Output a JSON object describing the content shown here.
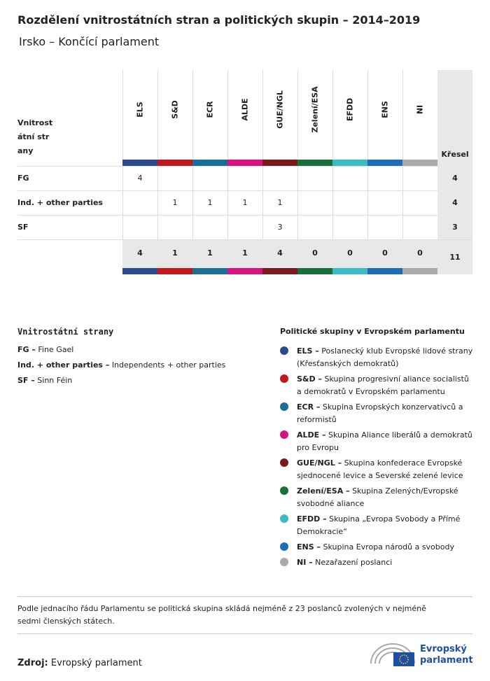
{
  "title": "Rozdělení vnitrostátních stran a politických skupin – 2014–2019",
  "subtitle": "Irsko – Končící parlament",
  "table": {
    "row_header": "Vnitrostátní strany",
    "total_header": "Křesel",
    "columns": [
      {
        "name": "ELS",
        "color": "#2b4a8b"
      },
      {
        "name": "S&D",
        "color": "#c0191d"
      },
      {
        "name": "ECR",
        "color": "#1b6f96"
      },
      {
        "name": "ALDE",
        "color": "#d6137f"
      },
      {
        "name": "GUE/NGL",
        "color": "#7b1a1a"
      },
      {
        "name": "Zelení/ESA",
        "color": "#1a6e38"
      },
      {
        "name": "EFDD",
        "color": "#3bbcc2"
      },
      {
        "name": "ENS",
        "color": "#1f6db5"
      },
      {
        "name": "NI",
        "color": "#aaaaaa"
      }
    ],
    "rows": [
      {
        "party": "FG",
        "values": [
          4,
          null,
          null,
          null,
          null,
          null,
          null,
          null,
          null
        ],
        "total": 4
      },
      {
        "party": "Ind. + other parties",
        "values": [
          null,
          1,
          1,
          1,
          1,
          null,
          null,
          null,
          null
        ],
        "total": 4
      },
      {
        "party": "SF",
        "values": [
          null,
          null,
          null,
          null,
          3,
          null,
          null,
          null,
          null
        ],
        "total": 3
      }
    ],
    "totals": [
      4,
      1,
      1,
      1,
      4,
      0,
      0,
      0,
      0
    ],
    "grand_total": 11
  },
  "national_legend": {
    "title": "Vnitrostátní strany",
    "items": [
      {
        "abbr": "FG –",
        "name": "Fine Gael"
      },
      {
        "abbr": "Ind. + other parties –",
        "name": "Independents + other parties"
      },
      {
        "abbr": "SF –",
        "name": "Sinn Féin"
      }
    ]
  },
  "group_legend": {
    "title": "Politické skupiny v Evropském parlamentu",
    "items": [
      {
        "abbr": "ELS –",
        "desc": "Poslanecký klub Evropské lidové strany (Křesťanských demokratů)",
        "color": "#2b4a8b"
      },
      {
        "abbr": "S&D –",
        "desc": "Skupina progresivní aliance socialistů a demokratů v Evropském parlamentu",
        "color": "#c0191d"
      },
      {
        "abbr": "ECR –",
        "desc": "Skupina Evropských konzervativců a reformistů",
        "color": "#1b6f96"
      },
      {
        "abbr": "ALDE –",
        "desc": "Skupina Aliance liberálů a demokratů pro Evropu",
        "color": "#d6137f"
      },
      {
        "abbr": "GUE/NGL –",
        "desc": "Skupina konfederace Evropské sjednocené levice a Severské zelené levice",
        "color": "#7b1a1a"
      },
      {
        "abbr": "Zelení/ESA –",
        "desc": "Skupina Zelených/Evropské svobodné aliance",
        "color": "#1a6e38"
      },
      {
        "abbr": "EFDD –",
        "desc": "Skupina „Evropa Svobody a Přímé Demokracie“",
        "color": "#3bbcc2"
      },
      {
        "abbr": "ENS –",
        "desc": "Skupina Evropa národů a svobody",
        "color": "#1f6db5"
      },
      {
        "abbr": "NI –",
        "desc": "Nezařazení poslanci",
        "color": "#aaaaaa"
      }
    ]
  },
  "note": "Podle jednacího řádu Parlamentu se politická skupina skládá nejméně z 23 poslanců zvolených v nejméně sedmi členských státech.",
  "source": {
    "label": "Zdroj:",
    "text": "Evropský parlament"
  },
  "logo": "Evropský parlament"
}
